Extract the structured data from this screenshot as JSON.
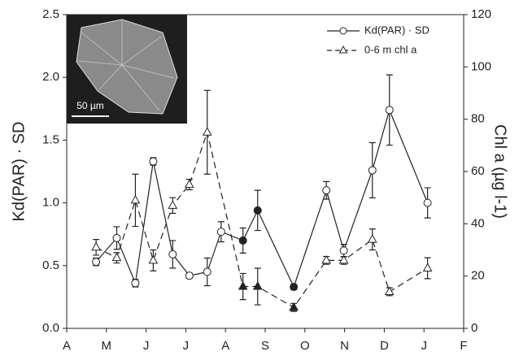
{
  "chart_data": {
    "type": "line",
    "y_label": "Kd(PAR) · SD",
    "y2_label": "Chl a (µg l-1)",
    "inset": {
      "scale_label": "50 µm"
    },
    "xlim": [
      0,
      10
    ],
    "xticks": [
      {
        "value": 0,
        "label": "A"
      },
      {
        "value": 1,
        "label": "M"
      },
      {
        "value": 2,
        "label": "J"
      },
      {
        "value": 3,
        "label": "J"
      },
      {
        "value": 4,
        "label": "A"
      },
      {
        "value": 5,
        "label": "S"
      },
      {
        "value": 6,
        "label": "O"
      },
      {
        "value": 7,
        "label": "N"
      },
      {
        "value": 8,
        "label": "D"
      },
      {
        "value": 9,
        "label": "J"
      },
      {
        "value": 10,
        "label": "F"
      }
    ],
    "ylim": [
      0,
      2.5
    ],
    "yticks": [
      {
        "value": 0,
        "label": "0.0"
      },
      0.5,
      {
        "value": 1,
        "label": "1.0"
      },
      1.5,
      {
        "value": 2,
        "label": "2.0"
      },
      2.5
    ],
    "y2lim": [
      0,
      120
    ],
    "y2ticks": [
      0,
      20,
      40,
      60,
      80,
      100,
      120
    ],
    "legend": "upper right",
    "series": [
      {
        "name": "Kd(PAR) · SD",
        "color": "#222222",
        "marker": "circle",
        "dash": false,
        "x": [
          0.74,
          1.26,
          1.73,
          2.18,
          2.67,
          3.09,
          3.54,
          3.89,
          4.44,
          4.81,
          5.72,
          6.54,
          6.98,
          7.7,
          8.13,
          9.09
        ],
        "values": [
          0.53,
          0.72,
          0.36,
          1.33,
          0.59,
          0.42,
          0.45,
          0.77,
          0.7,
          0.94,
          0.33,
          1.1,
          0.62,
          1.26,
          1.74,
          1.0
        ],
        "errors": [
          0.03,
          0.09,
          0.03,
          0.03,
          0.11,
          0.02,
          0.11,
          0.08,
          0.1,
          0.16,
          0.02,
          0.07,
          0.05,
          0.22,
          0.28,
          0.12
        ],
        "filled": [
          false,
          false,
          false,
          false,
          false,
          false,
          false,
          false,
          true,
          true,
          true,
          false,
          false,
          false,
          false,
          false
        ]
      },
      {
        "name": "0-6 m chl a",
        "color": "#222222",
        "marker": "triangle",
        "dash": true,
        "axis": "y2",
        "x": [
          0.74,
          1.26,
          1.73,
          2.18,
          2.67,
          3.09,
          3.54,
          4.44,
          4.81,
          5.72,
          6.54,
          6.98,
          7.7,
          8.13,
          9.09
        ],
        "values": [
          31,
          27,
          49,
          26,
          47,
          55,
          75,
          16,
          16,
          8,
          26,
          26,
          34,
          14,
          23
        ],
        "errors": [
          3,
          2,
          10,
          4,
          3,
          2,
          16,
          5,
          7,
          1.5,
          1.5,
          1.5,
          4,
          1.5,
          4
        ],
        "filled": [
          false,
          false,
          false,
          false,
          false,
          false,
          false,
          true,
          true,
          true,
          false,
          false,
          false,
          false,
          false
        ]
      }
    ]
  }
}
